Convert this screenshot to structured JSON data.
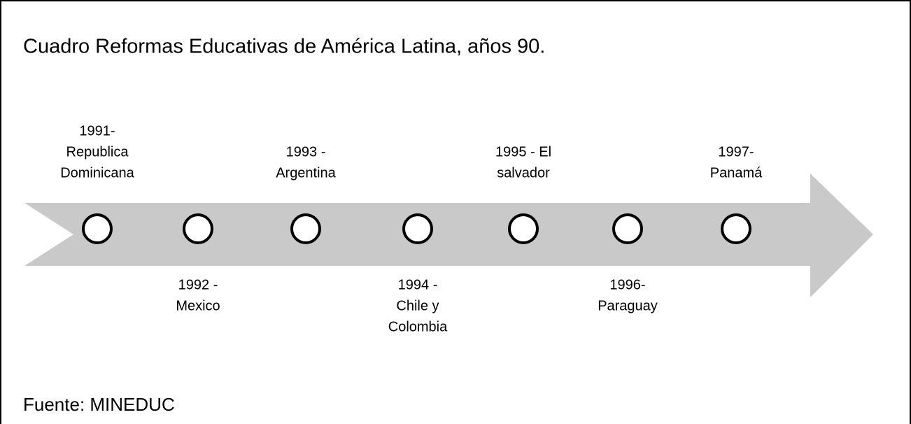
{
  "title": "Cuadro Reformas Educativas de América Latina, años 90.",
  "events": [
    {
      "lines": [
        "1991-",
        "Republica",
        "Dominicana"
      ]
    },
    {
      "lines": [
        "1992 -",
        "Mexico"
      ]
    },
    {
      "lines": [
        "1993 -",
        "Argentina"
      ]
    },
    {
      "lines": [
        "1994 -",
        "Chile y",
        "Colombia"
      ]
    },
    {
      "lines": [
        "1995 - El",
        "salvador"
      ]
    },
    {
      "lines": [
        "1996-",
        "Paraguay"
      ]
    },
    {
      "lines": [
        "1997-",
        "Panamá"
      ]
    }
  ],
  "source": "Fuente: MINEDUC"
}
